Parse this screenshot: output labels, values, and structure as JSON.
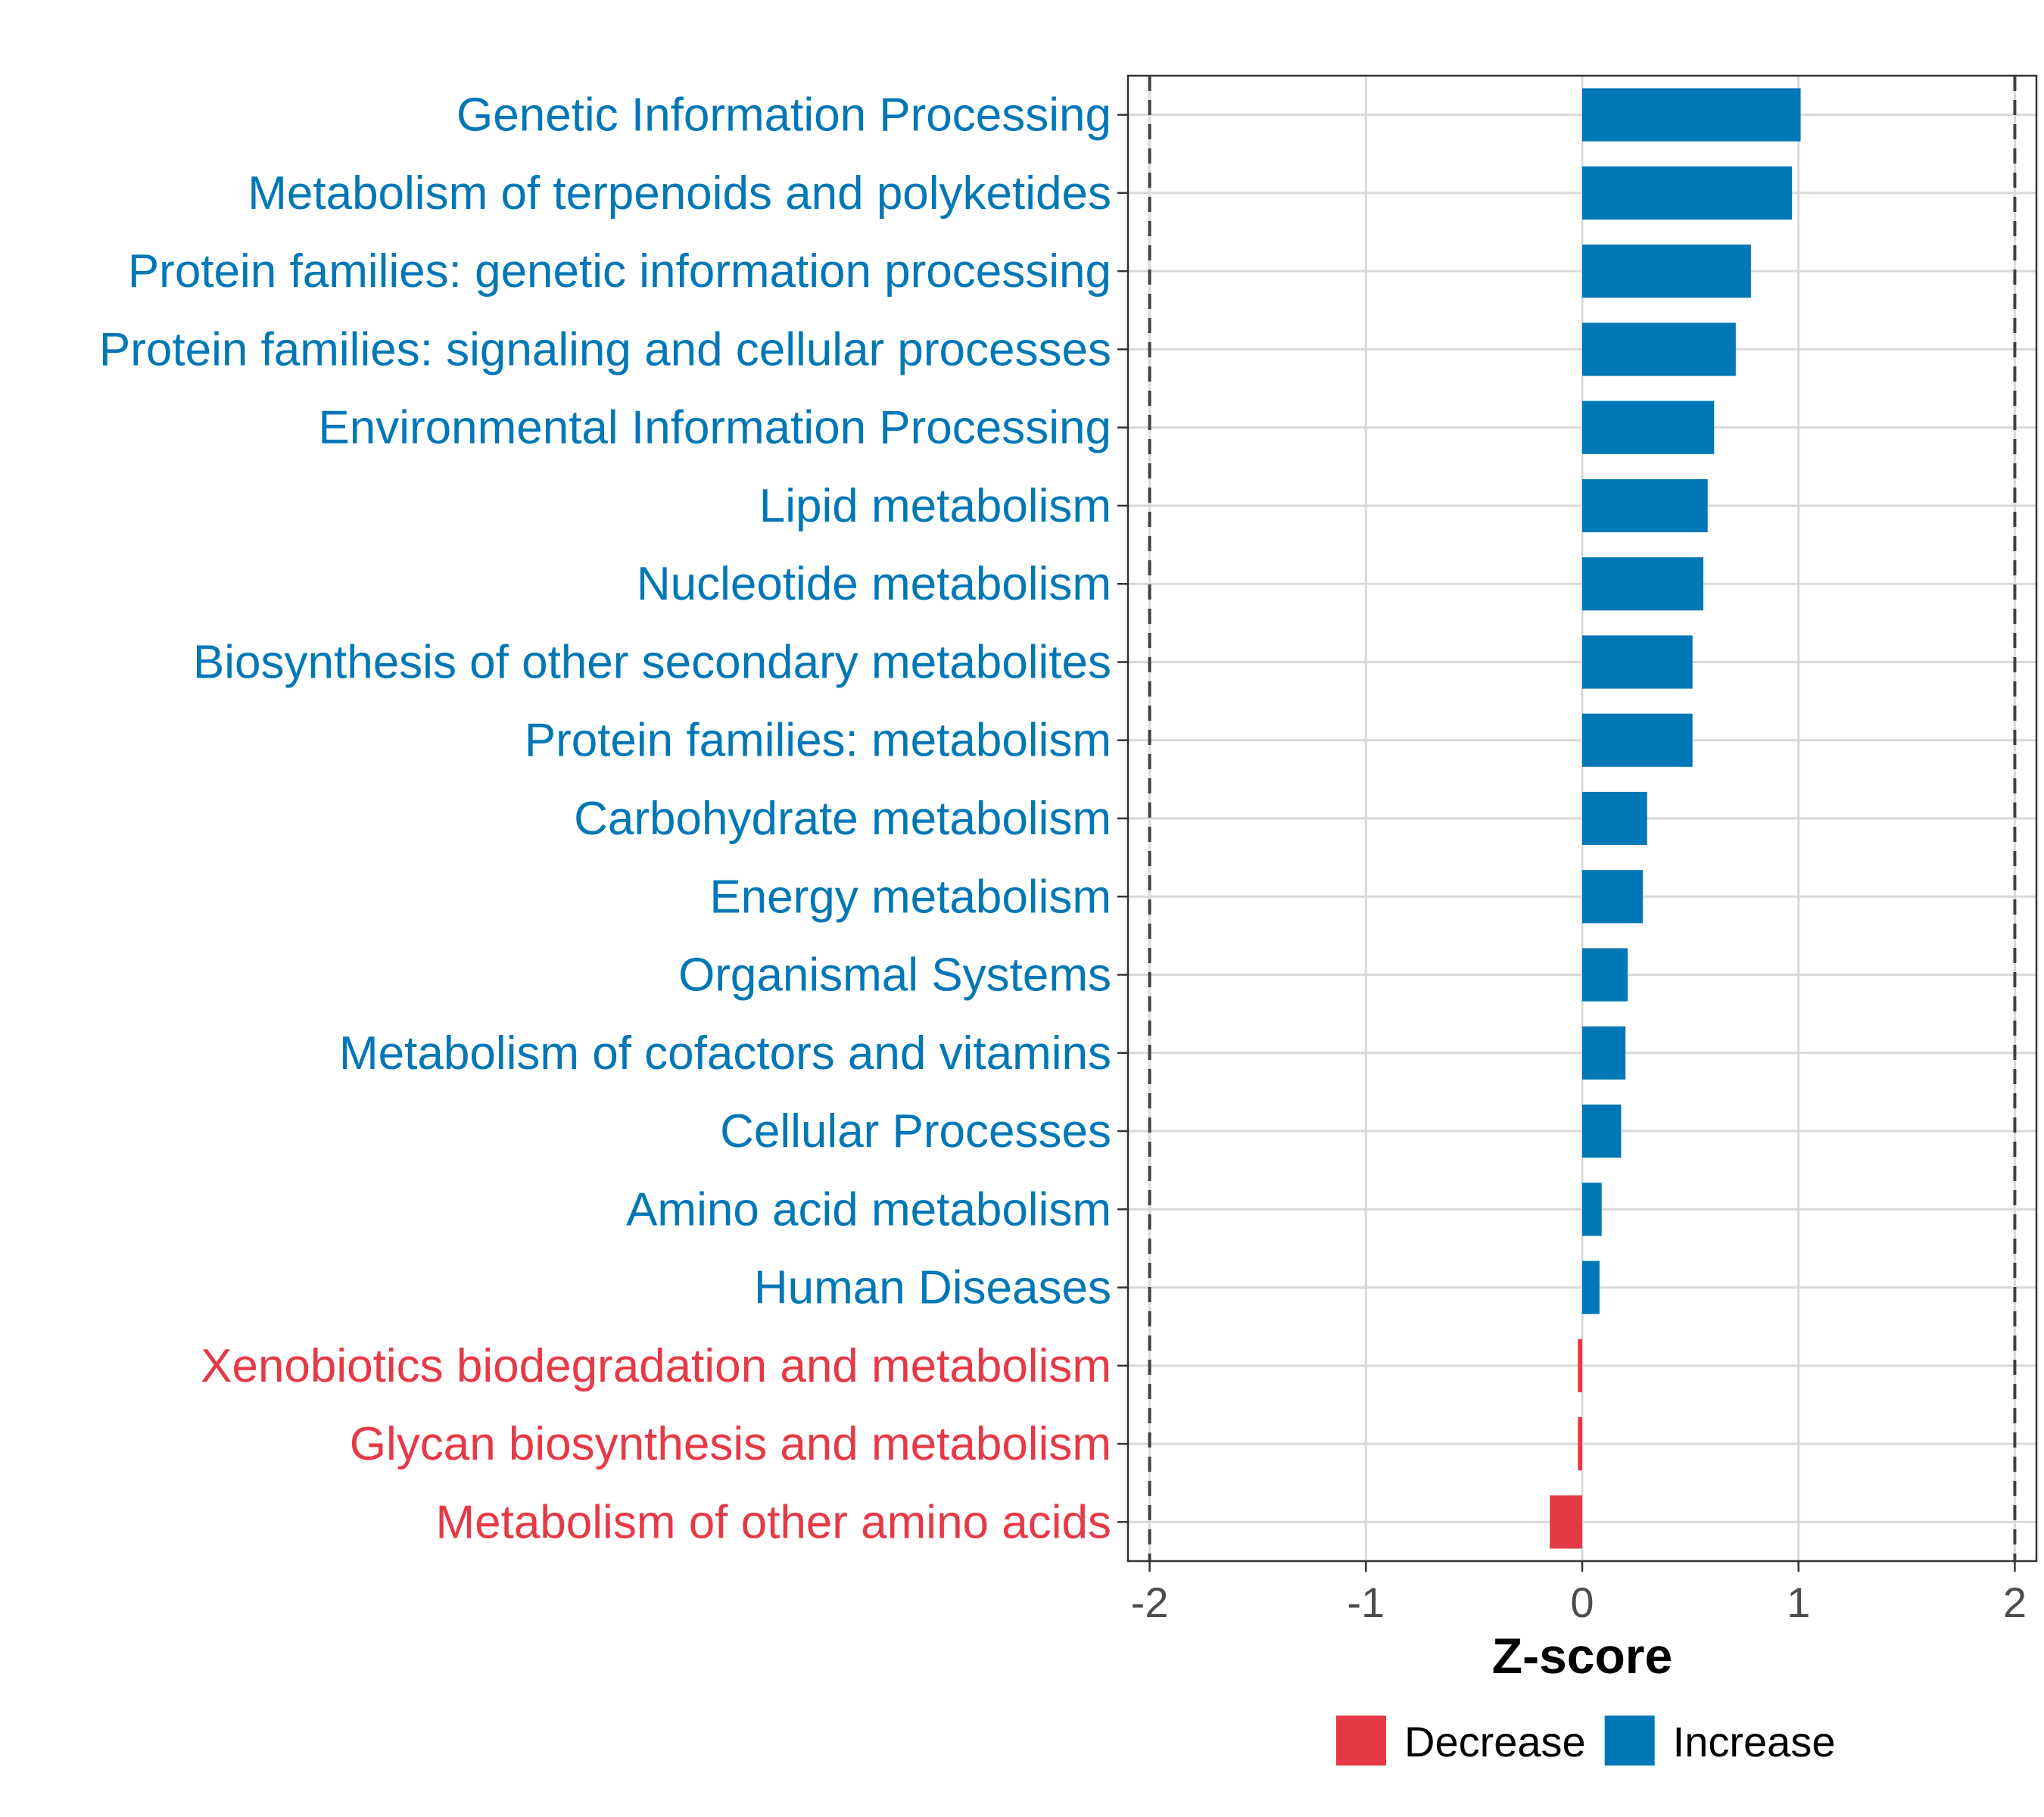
{
  "chart_data": {
    "type": "bar",
    "orientation": "horizontal",
    "title": "",
    "xlabel": "Z-score",
    "ylabel": "",
    "xlim": [
      -2.1,
      2.1
    ],
    "xticks": [
      -2,
      -1,
      0,
      1,
      2
    ],
    "xtick_labels": [
      "-2",
      "-1",
      "0",
      "1",
      "2"
    ],
    "reference_lines": [
      -2,
      2
    ],
    "grid": true,
    "categories": [
      "Genetic Information Processing",
      "Metabolism of terpenoids and polyketides",
      "Protein families: genetic information processing",
      "Protein families: signaling and cellular processes",
      "Environmental Information Processing",
      "Lipid metabolism",
      "Nucleotide metabolism",
      "Biosynthesis of other secondary metabolites",
      "Protein families: metabolism",
      "Carbohydrate metabolism",
      "Energy metabolism",
      "Organismal Systems",
      "Metabolism of cofactors and vitamins",
      "Cellular Processes",
      "Amino acid metabolism",
      "Human Diseases",
      "Xenobiotics biodegradation and metabolism",
      "Glycan biosynthesis and metabolism",
      "Metabolism of other amino acids"
    ],
    "values": [
      1.01,
      0.97,
      0.78,
      0.71,
      0.61,
      0.58,
      0.56,
      0.51,
      0.51,
      0.3,
      0.28,
      0.21,
      0.2,
      0.18,
      0.09,
      0.08,
      -0.02,
      -0.02,
      -0.15
    ],
    "groups": [
      "Increase",
      "Increase",
      "Increase",
      "Increase",
      "Increase",
      "Increase",
      "Increase",
      "Increase",
      "Increase",
      "Increase",
      "Increase",
      "Increase",
      "Increase",
      "Increase",
      "Increase",
      "Increase",
      "Decrease",
      "Decrease",
      "Decrease"
    ],
    "legend": {
      "position": "bottom",
      "entries": [
        {
          "label": "Decrease",
          "color": "#e63946"
        },
        {
          "label": "Increase",
          "color": "#0077b6"
        }
      ]
    },
    "colors": {
      "Increase": "#0077b6",
      "Decrease": "#e63946"
    }
  }
}
